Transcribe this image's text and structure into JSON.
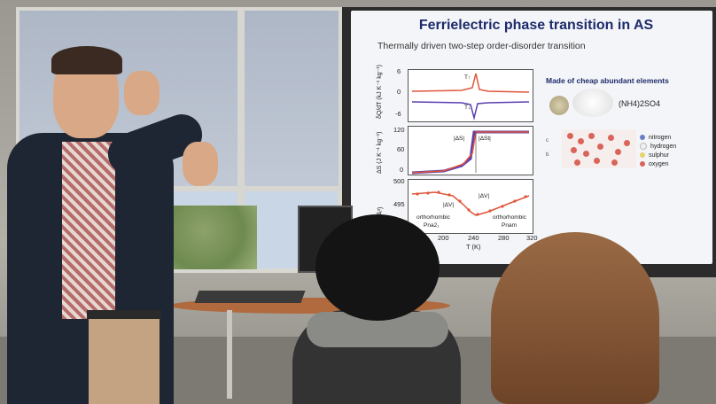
{
  "slide": {
    "title": "Ferrielectric phase transition in AS",
    "subtitle": "Thermally driven two-step order-disorder transition",
    "side_heading": "Made of cheap abundant elements",
    "formula": "(NH4)2SO4",
    "legend": [
      {
        "label": "nitrogen",
        "color": "#6b7fc4"
      },
      {
        "label": "hydrogen",
        "color": "#f0f0f0"
      },
      {
        "label": "sulphur",
        "color": "#e6d36a"
      },
      {
        "label": "oxygen",
        "color": "#d9645a"
      }
    ],
    "axes_vectors": {
      "c": "c",
      "b": "b"
    },
    "panel1": {
      "ylabel": "δQ/dT (kJ K⁻¹ kg⁻¹)",
      "ticks": [
        "6",
        "0",
        "-6"
      ],
      "annot_up": "T↑",
      "annot_down": "T↓"
    },
    "panel2": {
      "ylabel": "ΔS (J K⁻¹ kg⁻¹)",
      "ticks": [
        "120",
        "60",
        "0"
      ],
      "annot_left": "|ΔS|",
      "annot_right": "|ΔSt|"
    },
    "panel3": {
      "ylabel": "V (Å³)",
      "ticks": [
        "500",
        "495"
      ],
      "annot_v1": "|ΔV|",
      "annot_v2": "|ΔV|",
      "phase_left": "orthorhombic",
      "phase_left_group": "Pna2₁",
      "phase_right": "orthorhombic",
      "phase_right_group": "Pnam",
      "xticks": [
        "160",
        "200",
        "240",
        "280",
        "320"
      ],
      "xlabel": "T (K)"
    },
    "colors": {
      "title": "#1d2b6b",
      "heating": "#e0553a",
      "cooling": "#5a3fb0"
    }
  }
}
